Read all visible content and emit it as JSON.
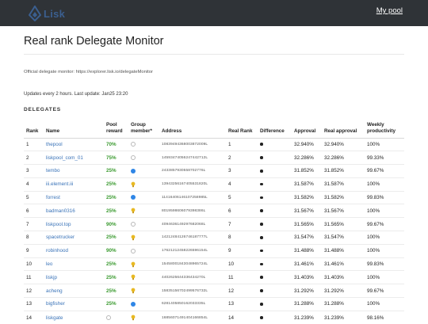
{
  "header": {
    "logo_text": "Lisk",
    "nav_link": "My pool"
  },
  "page": {
    "title": "Real rank Delegate Monitor",
    "official_text": "Official delegate monitor: https://explorer.lisk.io/delegateMonitor",
    "updates_text": "Updates every 2 hours. Last update: Jan25 23:20",
    "section_heading": "DELEGATES"
  },
  "colors": {
    "topbar": "#2f3337",
    "link": "#3a73b8",
    "reward_green": "#3a9a2f",
    "member_blue": "#2f86e6",
    "bulb_yellow": "#e8b923"
  },
  "table": {
    "columns": [
      "Rank",
      "Name",
      "Pool reward",
      "Group member*",
      "Address",
      "Real Rank",
      "Difference",
      "Approval",
      "Real approval",
      "Weekly productivity"
    ],
    "rows": [
      {
        "rank": "1",
        "name": "thepool",
        "reward": "70%",
        "member": "empty-circle",
        "address": "10839494368003872009L",
        "real_rank": "1",
        "difference": "0",
        "approval": "32.940%",
        "real_approval": "32.940%",
        "productivity": "100%"
      },
      {
        "rank": "2",
        "name": "liskpool_com_01",
        "reward": "75%",
        "member": "empty-circle",
        "address": "14593474056247442712L",
        "real_rank": "2",
        "difference": "0",
        "approval": "32.286%",
        "real_approval": "32.286%",
        "productivity": "99.33%"
      },
      {
        "rank": "3",
        "name": "tembo",
        "reward": "25%",
        "member": "blue-circle",
        "address": "2433857930558702776L",
        "real_rank": "3",
        "difference": "0",
        "approval": "31.852%",
        "real_approval": "31.852%",
        "productivity": "99.67%"
      },
      {
        "rank": "4",
        "name": "iii.element.iii",
        "reward": "25%",
        "member": "bulb",
        "address": "13943256167405531820L",
        "real_rank": "4",
        "difference": "0",
        "approval": "31.587%",
        "real_approval": "31.587%",
        "productivity": "100%"
      },
      {
        "rank": "5",
        "name": "forrest",
        "reward": "25%",
        "member": "blue-circle",
        "address": "11416406146107258985L",
        "real_rank": "5",
        "difference": "0",
        "approval": "31.582%",
        "real_approval": "31.582%",
        "productivity": "99.83%"
      },
      {
        "rank": "6",
        "name": "badman0316",
        "reward": "25%",
        "member": "bulb",
        "address": "8019598606079398386L",
        "real_rank": "6",
        "difference": "0",
        "approval": "31.567%",
        "real_approval": "31.567%",
        "productivity": "100%"
      },
      {
        "rank": "7",
        "name": "liskpool.top",
        "reward": "90%",
        "member": "empty-circle",
        "address": "4094636149297682068L",
        "real_rank": "7",
        "difference": "0",
        "approval": "31.565%",
        "real_approval": "31.565%",
        "productivity": "99.67%"
      },
      {
        "rank": "8",
        "name": "spacetrucker",
        "reward": "25%",
        "member": "bulb",
        "address": "14212484126746187777L",
        "real_rank": "8",
        "difference": "0",
        "approval": "31.547%",
        "real_approval": "31.547%",
        "productivity": "100%"
      },
      {
        "rank": "9",
        "name": "robinhood",
        "reward": "90%",
        "member": "empty-circle",
        "address": "17621212458226596154L",
        "real_rank": "9",
        "difference": "0",
        "approval": "31.488%",
        "real_approval": "31.488%",
        "productivity": "100%"
      },
      {
        "rank": "10",
        "name": "leo",
        "reward": "25%",
        "member": "bulb",
        "address": "15458001843048965724L",
        "real_rank": "10",
        "difference": "0",
        "approval": "31.461%",
        "real_approval": "31.461%",
        "productivity": "99.83%"
      },
      {
        "rank": "11",
        "name": "liskjp",
        "reward": "25%",
        "member": "bulb",
        "address": "4402625644336434270L",
        "real_rank": "11",
        "difference": "0",
        "approval": "31.403%",
        "real_approval": "31.403%",
        "productivity": "100%"
      },
      {
        "rank": "12",
        "name": "acheng",
        "reward": "25%",
        "member": "bulb",
        "address": "15835156702499576732L",
        "real_rank": "12",
        "difference": "0",
        "approval": "31.292%",
        "real_approval": "31.292%",
        "productivity": "99.67%"
      },
      {
        "rank": "13",
        "name": "bigfisher",
        "reward": "25%",
        "member": "blue-circle",
        "address": "6281405850162033335L",
        "real_rank": "13",
        "difference": "0",
        "approval": "31.288%",
        "real_approval": "31.288%",
        "productivity": "100%"
      },
      {
        "rank": "14",
        "name": "liskgate",
        "reward": "empty-circle",
        "member": "bulb",
        "address": "16856071491404166854L",
        "real_rank": "14",
        "difference": "0",
        "approval": "31.239%",
        "real_approval": "31.239%",
        "productivity": "98.16%"
      }
    ]
  }
}
